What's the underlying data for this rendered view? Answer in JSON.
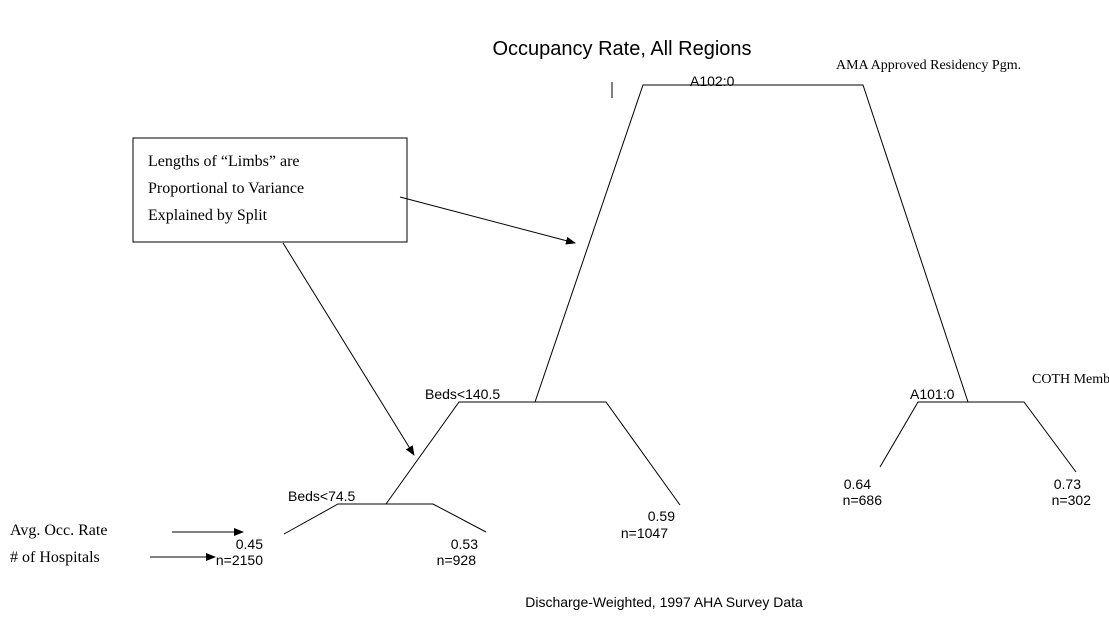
{
  "title": "Occupancy Rate, All Regions",
  "footer": "Discharge-Weighted, 1997 AHA Survey Data",
  "nodes": [
    {
      "label": "A102:0",
      "note": "AMA Approved Residency Pgm."
    },
    {
      "label": "Beds<140.5"
    },
    {
      "label": "Beds<74.5"
    },
    {
      "label": "A101:0",
      "note": "COTH Member"
    }
  ],
  "leaves": [
    {
      "rate": "0.45",
      "count": "n=2150"
    },
    {
      "rate": "0.53",
      "count": "n=928"
    },
    {
      "rate": "0.59",
      "count": "n=1047"
    },
    {
      "rate": "0.64",
      "count": "n=686"
    },
    {
      "rate": "0.73",
      "count": "n=302"
    }
  ],
  "callout": {
    "lines": [
      "Lengths of “Limbs” are",
      "Proportional to Variance",
      "Explained by Split"
    ]
  },
  "legend": [
    "Avg. Occ. Rate",
    "# of Hospitals"
  ]
}
